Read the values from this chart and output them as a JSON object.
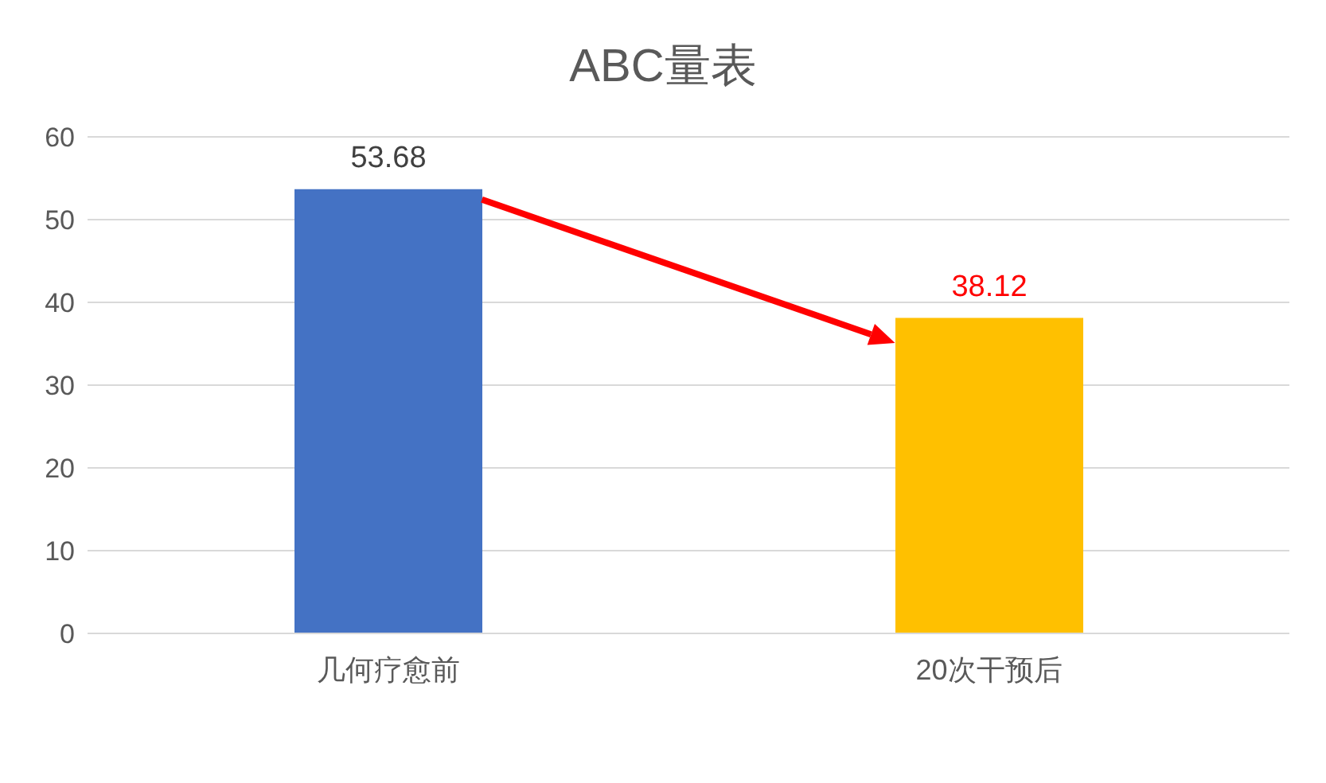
{
  "chart_data": {
    "type": "bar",
    "title": "ABC量表",
    "categories": [
      "几何疗愈前",
      "20次干预后"
    ],
    "values": [
      53.68,
      38.12
    ],
    "colors": [
      "#4472c4",
      "#ffc000"
    ],
    "ylim": [
      0,
      60
    ],
    "yticks": [
      0,
      10,
      20,
      30,
      40,
      50,
      60
    ],
    "grid": "y",
    "data_labels": true
  }
}
